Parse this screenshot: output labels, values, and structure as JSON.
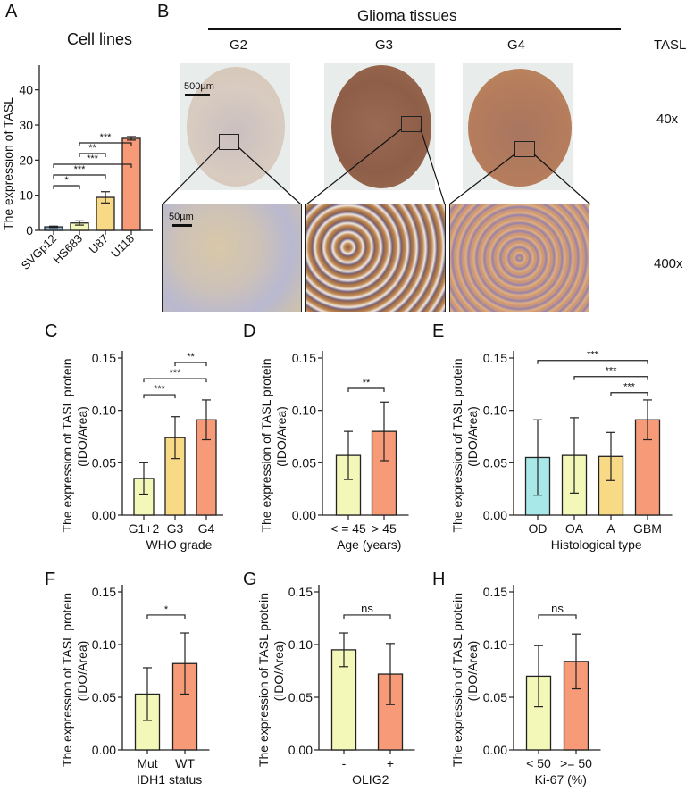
{
  "figure": {
    "panel_letters": [
      "A",
      "B",
      "C",
      "D",
      "E",
      "F",
      "G",
      "H"
    ]
  },
  "panel_b": {
    "header": "Glioma tissues",
    "grades": [
      "G2",
      "G3",
      "G4"
    ],
    "marker": "TASL",
    "magnifications": [
      "40x",
      "400x"
    ],
    "scalebars": [
      "500µm",
      "50µm"
    ]
  },
  "chart_data": [
    {
      "panel": "A",
      "type": "bar",
      "title": "Cell lines",
      "xlabel": "",
      "ylabel": "The expression of TASL",
      "ylim": [
        0,
        45
      ],
      "yticks": [
        "0",
        "10",
        "20",
        "30",
        "40"
      ],
      "categories": [
        "SVGp12",
        "HS683",
        "U87",
        "U118"
      ],
      "values": [
        1.0,
        2.1,
        9.4,
        26.2
      ],
      "errors": [
        0.2,
        0.6,
        1.6,
        0.5
      ],
      "colors": [
        "#8fb8d8",
        "#f3f7b8",
        "#f8d985",
        "#f69a78"
      ],
      "significance": [
        {
          "from": "SVGp12",
          "to": "HS683",
          "label": "*"
        },
        {
          "from": "SVGp12",
          "to": "U87",
          "label": "***"
        },
        {
          "from": "SVGp12",
          "to": "U118",
          "label": "***"
        },
        {
          "from": "HS683",
          "to": "U87",
          "label": "**"
        },
        {
          "from": "HS683",
          "to": "U118",
          "label": "***"
        }
      ]
    },
    {
      "panel": "C",
      "type": "bar",
      "xlabel": "WHO grade",
      "ylabel": "The expression of TASL protein",
      "ylabel2": "(IDO/Area)",
      "ylim": [
        0,
        0.15
      ],
      "yticks": [
        "0.00",
        "0.05",
        "0.10",
        "0.15"
      ],
      "categories": [
        "G1+2",
        "G3",
        "G4"
      ],
      "values": [
        0.035,
        0.074,
        0.091
      ],
      "errors": [
        0.015,
        0.02,
        0.019
      ],
      "colors": [
        "#f3f7b8",
        "#f8d985",
        "#f69a78"
      ],
      "significance": [
        {
          "from": "G1+2",
          "to": "G3",
          "label": "***"
        },
        {
          "from": "G1+2",
          "to": "G4",
          "label": "***"
        },
        {
          "from": "G3",
          "to": "G4",
          "label": "**"
        }
      ]
    },
    {
      "panel": "D",
      "type": "bar",
      "xlabel": "Age (years)",
      "ylabel": "The expression of TASL protein",
      "ylabel2": "(IDO/Area)",
      "ylim": [
        0,
        0.15
      ],
      "yticks": [
        "0.00",
        "0.05",
        "0.10",
        "0.15"
      ],
      "categories": [
        "< = 45",
        "> 45"
      ],
      "values": [
        0.057,
        0.08
      ],
      "errors": [
        0.023,
        0.028
      ],
      "colors": [
        "#f3f7b8",
        "#f69a78"
      ],
      "significance": [
        {
          "from": "< = 45",
          "to": "> 45",
          "label": "**"
        }
      ]
    },
    {
      "panel": "E",
      "type": "bar",
      "xlabel": "Histological type",
      "ylabel": "The expression of TASL protein",
      "ylabel2": "(IDO/Area)",
      "ylim": [
        0,
        0.15
      ],
      "yticks": [
        "0.00",
        "0.05",
        "0.10",
        "0.15"
      ],
      "categories": [
        "OD",
        "OA",
        "A",
        "GBM"
      ],
      "values": [
        0.055,
        0.057,
        0.056,
        0.091
      ],
      "errors": [
        0.036,
        0.036,
        0.023,
        0.019
      ],
      "colors": [
        "#a8e8e8",
        "#f3f7b8",
        "#f8d985",
        "#f69a78"
      ],
      "significance": [
        {
          "from": "OD",
          "to": "GBM",
          "label": "***"
        },
        {
          "from": "OA",
          "to": "GBM",
          "label": "***"
        },
        {
          "from": "A",
          "to": "GBM",
          "label": "***"
        }
      ]
    },
    {
      "panel": "F",
      "type": "bar",
      "xlabel": "IDH1 status",
      "ylabel": "The expression of TASL protein",
      "ylabel2": "(IDO/Area)",
      "ylim": [
        0,
        0.15
      ],
      "yticks": [
        "0.00",
        "0.05",
        "0.10",
        "0.15"
      ],
      "categories": [
        "Mut",
        "WT"
      ],
      "values": [
        0.053,
        0.082
      ],
      "errors": [
        0.025,
        0.029
      ],
      "colors": [
        "#f3f7b8",
        "#f69a78"
      ],
      "significance": [
        {
          "from": "Mut",
          "to": "WT",
          "label": "*"
        }
      ]
    },
    {
      "panel": "G",
      "type": "bar",
      "xlabel": "OLIG2",
      "ylabel": "The expression of TASL protein",
      "ylabel2": "(IDO/Area)",
      "ylim": [
        0,
        0.15
      ],
      "yticks": [
        "0.00",
        "0.05",
        "0.10",
        "0.15"
      ],
      "categories": [
        "-",
        "+"
      ],
      "values": [
        0.095,
        0.072
      ],
      "errors": [
        0.016,
        0.029
      ],
      "colors": [
        "#f3f7b8",
        "#f69a78"
      ],
      "significance": [
        {
          "from": "-",
          "to": "+",
          "label": "ns"
        }
      ]
    },
    {
      "panel": "H",
      "type": "bar",
      "xlabel": "Ki-67 (%)",
      "ylabel": "The expression of TASL protein",
      "ylabel2": "(IDO/Area)",
      "ylim": [
        0,
        0.15
      ],
      "yticks": [
        "0.00",
        "0.05",
        "0.10",
        "0.15"
      ],
      "categories": [
        "< 50",
        ">= 50"
      ],
      "values": [
        0.07,
        0.084
      ],
      "errors": [
        0.029,
        0.026
      ],
      "colors": [
        "#f3f7b8",
        "#f69a78"
      ],
      "significance": [
        {
          "from": "< 50",
          "to": ">= 50",
          "label": "ns"
        }
      ]
    }
  ]
}
